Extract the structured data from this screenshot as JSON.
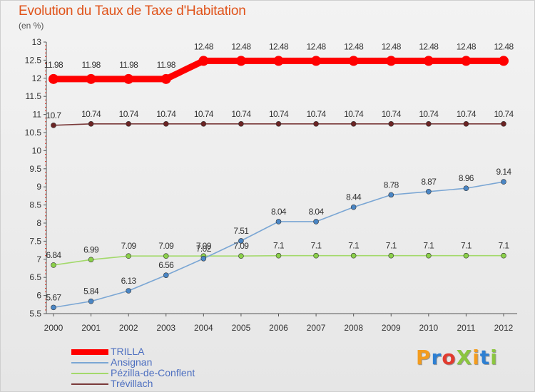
{
  "title": "Evolution du Taux de Taxe d'Habitation",
  "unit": "(en %)",
  "logo": {
    "text": "ProXiti",
    "letters": [
      {
        "ch": "P",
        "color": "#f39c1e"
      },
      {
        "ch": "r",
        "color": "#2d7fd2"
      },
      {
        "ch": "o",
        "color": "#e23b2f"
      },
      {
        "ch": "X",
        "color": "#8bc53f"
      },
      {
        "ch": "i",
        "color": "#f39c1e"
      },
      {
        "ch": "t",
        "color": "#2d7fd2"
      },
      {
        "ch": "i",
        "color": "#8bc53f"
      }
    ]
  },
  "chart_data": {
    "type": "line",
    "title": "Evolution du Taux de Taxe d'Habitation",
    "ylabel": "(en %)",
    "xlabel": "",
    "x": [
      "2000",
      "2001",
      "2002",
      "2003",
      "2004",
      "2005",
      "2006",
      "2007",
      "2008",
      "2009",
      "2010",
      "2011",
      "2012"
    ],
    "ylim": [
      5.5,
      13
    ],
    "yticks": [
      "5.5",
      "6",
      "6.5",
      "7",
      "7.5",
      "8",
      "8.5",
      "9",
      "9.5",
      "10",
      "10.5",
      "11",
      "11.5",
      "12",
      "12.5",
      "13"
    ],
    "grid": false,
    "legend_position": "bottom-left",
    "series": [
      {
        "name": "TRILLA",
        "color": "#ff0000",
        "marker": "#ff0000",
        "thick": true,
        "values": [
          11.98,
          11.98,
          11.98,
          11.98,
          12.48,
          12.48,
          12.48,
          12.48,
          12.48,
          12.48,
          12.48,
          12.48,
          12.48
        ],
        "labels": [
          "11.98",
          "11.98",
          "11.98",
          "11.98",
          "12.48",
          "12.48",
          "12.48",
          "12.48",
          "12.48",
          "12.48",
          "12.48",
          "12.48",
          "12.48"
        ]
      },
      {
        "name": "Ansignan",
        "color": "#7aa6d4",
        "marker": "#4a86c5",
        "thick": false,
        "values": [
          5.67,
          5.84,
          6.13,
          6.56,
          7.02,
          7.51,
          8.04,
          8.04,
          8.44,
          8.78,
          8.87,
          8.96,
          9.14
        ],
        "labels": [
          "5.67",
          "5.84",
          "6.13",
          "6.56",
          "7.02",
          "7.51",
          "8.04",
          "8.04",
          "8.44",
          "8.78",
          "8.87",
          "8.96",
          "9.14"
        ]
      },
      {
        "name": "Pézilla-de-Conflent",
        "color": "#a3d96b",
        "marker": "#8bd04a",
        "thick": false,
        "values": [
          6.84,
          6.99,
          7.09,
          7.09,
          7.09,
          7.09,
          7.1,
          7.1,
          7.1,
          7.1,
          7.1,
          7.1,
          7.1
        ],
        "labels": [
          "6.84",
          "6.99",
          "7.09",
          "7.09",
          "7.09",
          "7.09",
          "7.1",
          "7.1",
          "7.1",
          "7.1",
          "7.1",
          "7.1",
          "7.1"
        ]
      },
      {
        "name": "Trévillach",
        "color": "#7a3a3a",
        "marker": "#6b2424",
        "thick": false,
        "values": [
          10.7,
          10.74,
          10.74,
          10.74,
          10.74,
          10.74,
          10.74,
          10.74,
          10.74,
          10.74,
          10.74,
          10.74,
          10.74
        ],
        "labels": [
          "10.7",
          "10.74",
          "10.74",
          "10.74",
          "10.74",
          "10.74",
          "10.74",
          "10.74",
          "10.74",
          "10.74",
          "10.74",
          "10.74",
          "10.74"
        ]
      }
    ]
  }
}
